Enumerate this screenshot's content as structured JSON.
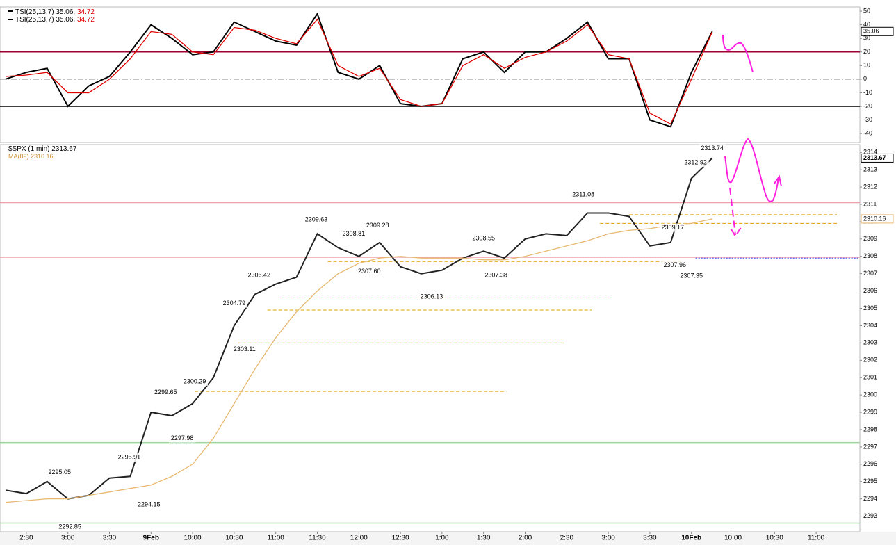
{
  "chart_data": [
    {
      "type": "line",
      "categories": [
        null,
        "2:30",
        null,
        "3:00",
        null,
        "3:30",
        null,
        "9Feb",
        null,
        "10:00",
        null,
        "10:30",
        null,
        "11:00",
        null,
        "11:30",
        null,
        "12:00",
        null,
        "12:30",
        null,
        "1:00",
        null,
        "1:30",
        null,
        "2:00",
        null,
        "2:30",
        null,
        "3:00",
        null,
        "3:30",
        null,
        "10Feb",
        null,
        "10:00",
        null,
        "10:30",
        null,
        "11:00"
      ],
      "series": [
        {
          "name": "TSI(25,13,7)",
          "color": "#000000",
          "values": [
            0,
            5,
            8,
            -20,
            -5,
            2,
            20,
            40,
            30,
            18,
            20,
            42,
            35,
            28,
            25,
            48,
            5,
            0,
            10,
            -18,
            -20,
            -18,
            15,
            20,
            5,
            20,
            20,
            30,
            42,
            15,
            15,
            -30,
            -35,
            5,
            35.06,
            null,
            null,
            null,
            null,
            null
          ]
        },
        {
          "color": "#e00000",
          "values": [
            2,
            3,
            5,
            -10,
            -10,
            0,
            15,
            35,
            33,
            20,
            18,
            38,
            36,
            30,
            26,
            44,
            10,
            2,
            8,
            -15,
            -20,
            -18,
            10,
            18,
            8,
            16,
            20,
            28,
            40,
            18,
            15,
            -25,
            -33,
            0,
            34.72,
            null,
            null,
            null,
            null,
            null
          ]
        }
      ],
      "ylim": [
        -46.6,
        53.1
      ],
      "yticks": [
        50,
        40,
        30,
        20,
        10,
        0,
        -10,
        -20,
        -30,
        -40
      ],
      "levels": [
        {
          "value": 20,
          "color": "#a00030",
          "style": "solid"
        },
        {
          "value": 0,
          "color": "#666666",
          "style": "dashdot"
        },
        {
          "value": -20,
          "color": "#000000",
          "style": "solid"
        }
      ]
    },
    {
      "type": "line",
      "categories": [
        null,
        "2:30",
        null,
        "3:00",
        null,
        "3:30",
        null,
        "9Feb",
        null,
        "10:00",
        null,
        "10:30",
        null,
        "11:00",
        null,
        "11:30",
        null,
        "12:00",
        null,
        "12:30",
        null,
        "1:00",
        null,
        "1:30",
        null,
        "2:00",
        null,
        "2:30",
        null,
        "3:00",
        null,
        "3:30",
        null,
        "10Feb",
        null,
        "10:00",
        null,
        "10:30",
        null,
        "11:00"
      ],
      "series": [
        {
          "name": "$SPX (1 min)",
          "color": "#222222",
          "values": [
            2294.5,
            2294.3,
            2295,
            2294,
            2294.2,
            2295.2,
            2295.3,
            2299,
            2298.8,
            2299.5,
            2301,
            2304,
            2305.8,
            2306.4,
            2306.8,
            2309.3,
            2308.5,
            2308,
            2308.8,
            2307.4,
            2307,
            2307.2,
            2307.9,
            2308.3,
            2307.9,
            2309,
            2309.3,
            2309.2,
            2310.5,
            2310.5,
            2310.3,
            2308.6,
            2308.8,
            2312.5,
            2313.67,
            null,
            null,
            null,
            null,
            null
          ]
        },
        {
          "name": "MA(89)",
          "color": "#e8b870",
          "values": [
            2293.8,
            2293.9,
            2294,
            2294,
            2294.2,
            2294.4,
            2294.6,
            2294.8,
            2295.3,
            2296,
            2297.5,
            2299.5,
            2301.5,
            2303.3,
            2304.8,
            2306,
            2307,
            2307.6,
            2307.9,
            2308,
            2307.9,
            2307.9,
            2307.9,
            2307.8,
            2307.8,
            2308,
            2308.3,
            2308.6,
            2308.9,
            2309.3,
            2309.5,
            2309.6,
            2309.8,
            2309.9,
            2310.16,
            null,
            null,
            null,
            null,
            null
          ]
        }
      ],
      "ylim": [
        2292.1,
        2314.45
      ],
      "yticks": [
        2314,
        2313,
        2312,
        2311,
        2310,
        2309,
        2308,
        2307,
        2306,
        2305,
        2304,
        2303,
        2302,
        2301,
        2300,
        2299,
        2298,
        2297,
        2296,
        2295,
        2294,
        2293
      ],
      "levels": [
        {
          "value": 2311.1,
          "color": "#f0a0a8",
          "style": "solid"
        },
        {
          "value": 2307.95,
          "color": "#f0a0a8",
          "style": "solid"
        },
        {
          "value": 2297.25,
          "color": "#9fd49f",
          "style": "solid"
        },
        {
          "value": 2292.6,
          "color": "#9fd49f",
          "style": "solid"
        },
        {
          "value": 2310.4,
          "color": "#e0a000",
          "style": "dashed",
          "from": 30,
          "to": 40
        },
        {
          "value": 2309.9,
          "color": "#e0a000",
          "style": "dashed",
          "from": 28.6,
          "to": 40
        },
        {
          "value": 2307.7,
          "color": "#e0a000",
          "style": "dashed",
          "from": 15.5,
          "to": 32.5
        },
        {
          "value": 2305.6,
          "color": "#e0a000",
          "style": "dashed",
          "from": 13.2,
          "to": 29.2
        },
        {
          "value": 2304.9,
          "color": "#e0a000",
          "style": "dashed",
          "from": 12.6,
          "to": 28.2
        },
        {
          "value": 2303.0,
          "color": "#e0a000",
          "style": "dashed",
          "from": 11.2,
          "to": 26.9
        },
        {
          "value": 2300.2,
          "color": "#e0a000",
          "style": "dashed",
          "from": 9.1,
          "to": 24.1
        },
        {
          "value": 2307.9,
          "color": "#2040ff",
          "style": "dotted",
          "from": 33.2,
          "to": 41
        }
      ],
      "annotations": [
        {
          "value": 2295.05,
          "label": "2295.05",
          "x": 2.6,
          "side": "above"
        },
        {
          "value": 2292.85,
          "label": "2292.85",
          "x": 3.1,
          "side": "below"
        },
        {
          "value": 2295.91,
          "label": "2295.91",
          "x": 5.95,
          "side": "above"
        },
        {
          "value": 2294.15,
          "label": "2294.15",
          "x": 6.9,
          "side": "below"
        },
        {
          "value": 2299.65,
          "label": "2299.65",
          "x": 7.7,
          "side": "above"
        },
        {
          "value": 2297.98,
          "label": "2297.98",
          "x": 8.5,
          "side": "below"
        },
        {
          "value": 2300.29,
          "label": "2300.29",
          "x": 9.1,
          "side": "above"
        },
        {
          "value": 2304.79,
          "label": "2304.79",
          "x": 11.0,
          "side": "above"
        },
        {
          "value": 2303.11,
          "label": "2303.11",
          "x": 11.5,
          "side": "below"
        },
        {
          "value": 2306.42,
          "label": "2306.42",
          "x": 12.2,
          "side": "above"
        },
        {
          "value": 2309.63,
          "label": "2309.63",
          "x": 14.95,
          "side": "above"
        },
        {
          "value": 2308.81,
          "label": "2308.81",
          "x": 16.75,
          "side": "above"
        },
        {
          "value": 2307.6,
          "label": "2307.60",
          "x": 17.5,
          "side": "below"
        },
        {
          "value": 2309.28,
          "label": "2309.28",
          "x": 17.9,
          "side": "above"
        },
        {
          "value": 2306.13,
          "label": "2306.13",
          "x": 20.5,
          "side": "below"
        },
        {
          "value": 2308.55,
          "label": "2308.55",
          "x": 23.0,
          "side": "above"
        },
        {
          "value": 2307.38,
          "label": "2307.38",
          "x": 23.6,
          "side": "below"
        },
        {
          "value": 2311.08,
          "label": "2311.08",
          "x": 27.8,
          "side": "above"
        },
        {
          "value": 2309.17,
          "label": "2309.17",
          "x": 32.1,
          "side": "above"
        },
        {
          "value": 2307.96,
          "label": "2307.96",
          "x": 32.2,
          "side": "below"
        },
        {
          "value": 2307.35,
          "label": "2307.35",
          "x": 33.0,
          "side": "below"
        },
        {
          "value": 2312.92,
          "label": "2312.92",
          "x": 33.2,
          "side": "above"
        },
        {
          "value": 2313.74,
          "label": "2313.74",
          "x": 34.0,
          "side": "above"
        }
      ]
    }
  ]
}
